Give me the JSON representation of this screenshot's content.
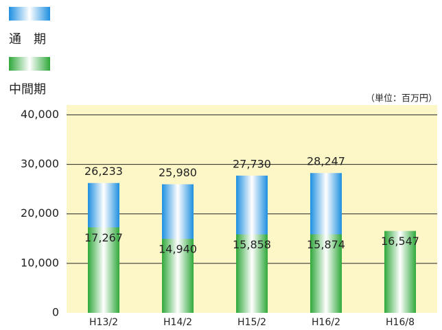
{
  "chart_data": {
    "type": "bar",
    "unit_note": "（単位：百万円）",
    "categories": [
      "H13/2",
      "H14/2",
      "H15/2",
      "H16/2",
      "H16/8"
    ],
    "series": [
      {
        "name": "通　期",
        "color": "#1e8fe0",
        "values": [
          26233,
          25980,
          27730,
          28247,
          null
        ],
        "value_labels": [
          "26,233",
          "25,980",
          "27,730",
          "28,247",
          null
        ]
      },
      {
        "name": "中間期",
        "color": "#2fa83a",
        "values": [
          17267,
          14940,
          15858,
          15874,
          16547
        ],
        "value_labels": [
          "17,267",
          "14,940",
          "15,858",
          "15,874",
          "16,547"
        ]
      }
    ],
    "ylim": [
      0,
      42000
    ],
    "yticks": [
      0,
      {
        "value": 10000,
        "label": "10,000"
      },
      {
        "value": 20000,
        "label": "20,000"
      },
      {
        "value": 30000,
        "label": "30,000"
      },
      {
        "value": 40000,
        "label": "40,000"
      }
    ],
    "grid": true
  }
}
